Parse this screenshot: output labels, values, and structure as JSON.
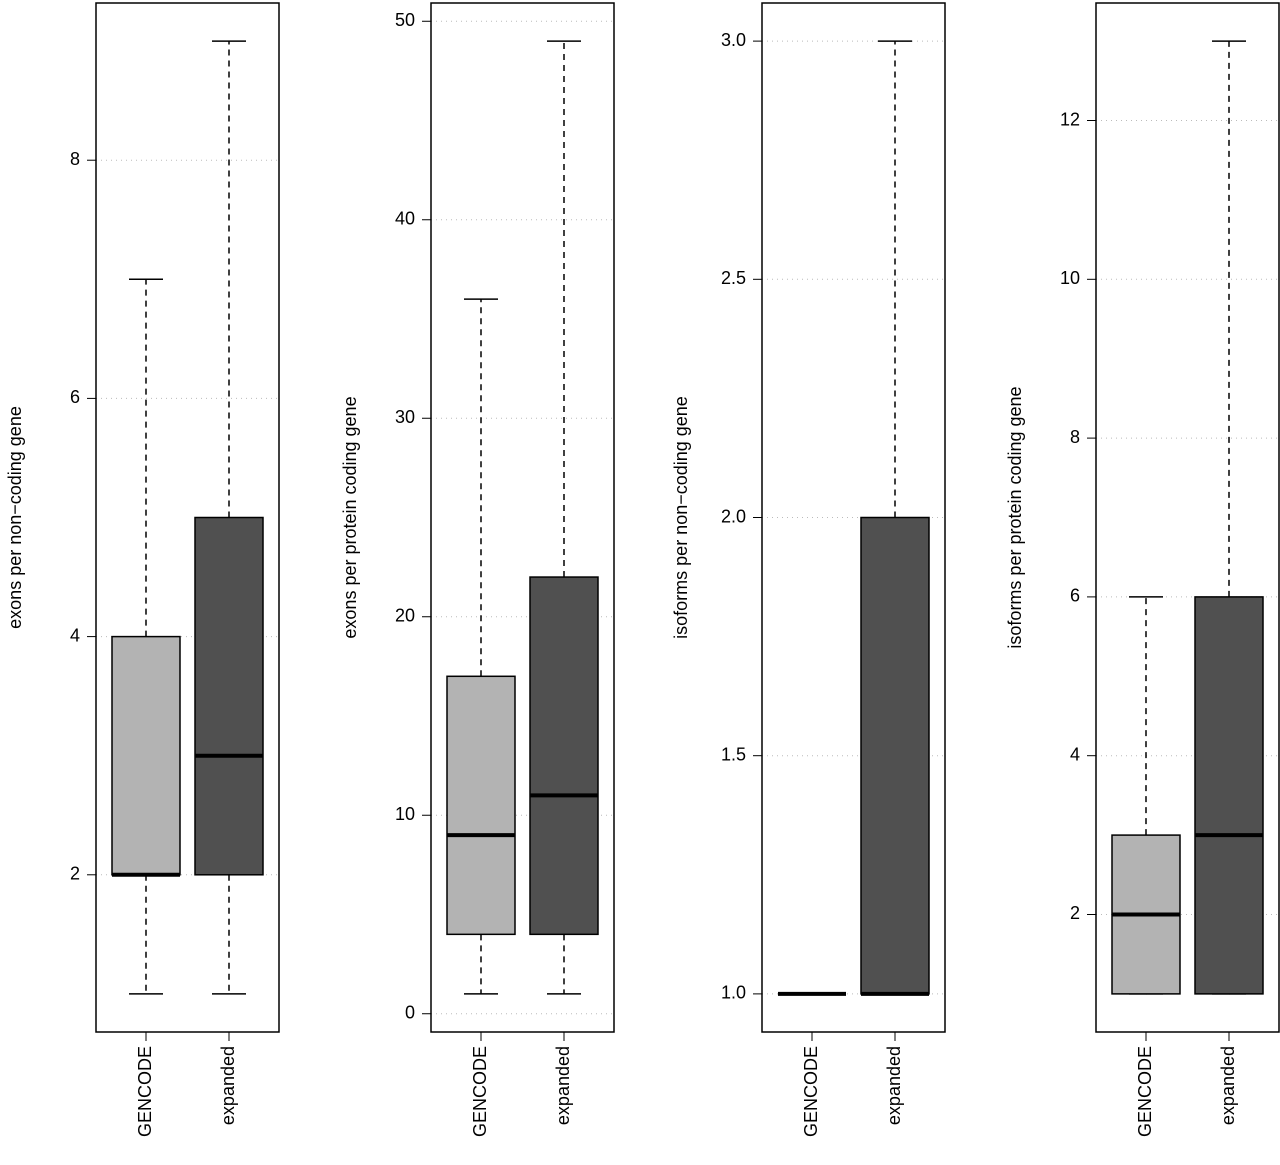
{
  "chart_data": [
    {
      "type": "box",
      "ylabel": "exons per non−coding gene",
      "ylim": [
        0.68,
        9.32
      ],
      "yticks": [
        2,
        4,
        6,
        8
      ],
      "grid": true,
      "boxes": [
        {
          "name": "GENCODE",
          "color": "#b3b3b3",
          "min": 1,
          "q1": 2,
          "median": 2,
          "q3": 4,
          "max": 7
        },
        {
          "name": "expanded",
          "color": "#505050",
          "min": 1,
          "q1": 2,
          "median": 3,
          "q3": 5,
          "max": 9
        }
      ]
    },
    {
      "type": "box",
      "ylabel": "exons per protein coding gene",
      "ylim": [
        -0.92,
        50.92
      ],
      "yticks": [
        0,
        10,
        20,
        30,
        40,
        50
      ],
      "grid": true,
      "boxes": [
        {
          "name": "GENCODE",
          "color": "#b3b3b3",
          "min": 1,
          "q1": 4,
          "median": 9,
          "q3": 17,
          "max": 36
        },
        {
          "name": "expanded",
          "color": "#505050",
          "min": 1,
          "q1": 4,
          "median": 11,
          "q3": 22,
          "max": 49
        }
      ]
    },
    {
      "type": "box",
      "ylabel": "isoforms per non−coding gene",
      "ylim": [
        0.92,
        3.08
      ],
      "yticks": [
        {
          "value": 1,
          "label": "1.0"
        },
        {
          "value": 1.5,
          "label": "1.5"
        },
        {
          "value": 2,
          "label": "2.0"
        },
        {
          "value": 2.5,
          "label": "2.5"
        },
        {
          "value": 3,
          "label": "3.0"
        }
      ],
      "grid": true,
      "boxes": [
        {
          "name": "GENCODE",
          "color": "#b3b3b3",
          "min": 1,
          "q1": 1,
          "median": 1,
          "q3": 1,
          "max": 1
        },
        {
          "name": "expanded",
          "color": "#505050",
          "min": 1,
          "q1": 1,
          "median": 1,
          "q3": 2,
          "max": 3
        }
      ]
    },
    {
      "type": "box",
      "ylabel": "isoforms per protein coding gene",
      "ylim": [
        0.52,
        13.48
      ],
      "yticks": [
        2,
        4,
        6,
        8,
        10,
        12
      ],
      "grid": true,
      "boxes": [
        {
          "name": "GENCODE",
          "color": "#b3b3b3",
          "min": 1,
          "q1": 1,
          "median": 2,
          "q3": 3,
          "max": 6
        },
        {
          "name": "expanded",
          "color": "#505050",
          "min": 1,
          "q1": 1,
          "median": 3,
          "q3": 6,
          "max": 13
        }
      ]
    }
  ]
}
